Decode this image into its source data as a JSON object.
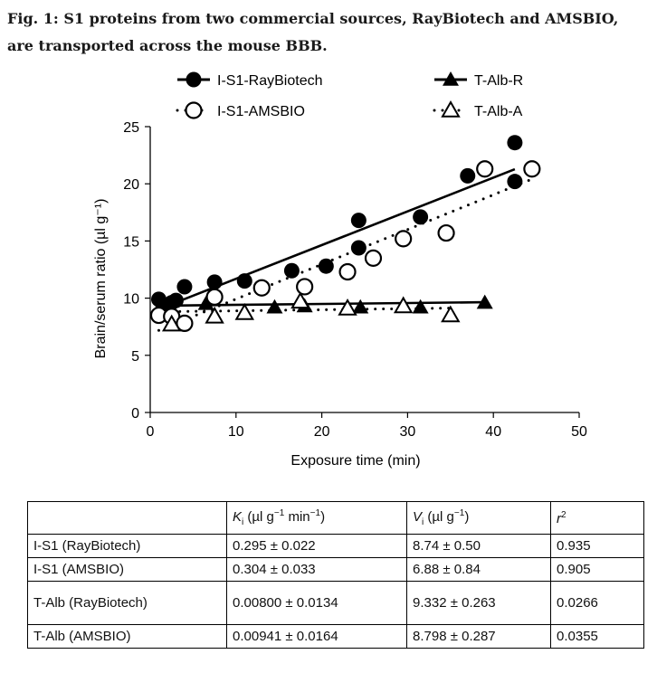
{
  "figure_title": "Fig. 1: S1 proteins from two commercial sources, RayBiotech and AMSBIO, are transported across the mouse BBB.",
  "chart_data": {
    "type": "scatter",
    "xlabel": "Exposure time (min)",
    "ylabel": "Brain/serum ratio (µl g⁻¹)",
    "xlim": [
      0,
      50
    ],
    "ylim": [
      0,
      25
    ],
    "x_ticks": [
      "0",
      "10",
      "20",
      "30",
      "40",
      "50"
    ],
    "y_ticks": [
      "0",
      "5",
      "10",
      "15",
      "20",
      "25"
    ],
    "grid": false,
    "legend_position": "top",
    "series": [
      {
        "name": "I-S1-RayBiotech",
        "marker": "filled-circle",
        "line": "solid",
        "points": [
          [
            1.0,
            9.9
          ],
          [
            1.5,
            9.2
          ],
          [
            2.5,
            9.6
          ],
          [
            3.0,
            9.8
          ],
          [
            4.0,
            11.0
          ],
          [
            7.5,
            11.4
          ],
          [
            11.0,
            11.5
          ],
          [
            16.5,
            12.4
          ],
          [
            20.5,
            12.8
          ],
          [
            24.3,
            16.8
          ],
          [
            24.3,
            14.4
          ],
          [
            31.5,
            17.1
          ],
          [
            37.0,
            20.7
          ],
          [
            42.5,
            23.6
          ],
          [
            42.5,
            20.2
          ]
        ],
        "fit": {
          "slope": 0.295,
          "intercept": 8.74
        }
      },
      {
        "name": "I-S1-AMSBIO",
        "marker": "open-circle-dot",
        "line": "dotted",
        "points": [
          [
            1.0,
            8.5
          ],
          [
            2.5,
            8.4
          ],
          [
            4.0,
            7.8
          ],
          [
            7.5,
            10.1
          ],
          [
            13.0,
            10.9
          ],
          [
            18.0,
            11.0
          ],
          [
            23.0,
            12.3
          ],
          [
            26.0,
            13.5
          ],
          [
            29.5,
            15.2
          ],
          [
            34.5,
            15.7
          ],
          [
            39.0,
            21.3
          ],
          [
            44.5,
            21.3
          ]
        ],
        "fit": {
          "slope": 0.304,
          "intercept": 6.88
        }
      },
      {
        "name": "T-Alb-R",
        "marker": "filled-triangle",
        "line": "solid",
        "points": [
          [
            1.5,
            8.6
          ],
          [
            6.5,
            9.5
          ],
          [
            18.0,
            9.3
          ],
          [
            14.5,
            9.2
          ],
          [
            24.5,
            9.2
          ],
          [
            31.5,
            9.2
          ],
          [
            39.0,
            9.6
          ]
        ],
        "fit": {
          "slope": 0.008,
          "intercept": 9.332
        }
      },
      {
        "name": "T-Alb-A",
        "marker": "open-triangle",
        "line": "dotted",
        "points": [
          [
            2.5,
            7.7
          ],
          [
            7.5,
            8.4
          ],
          [
            11.0,
            8.7
          ],
          [
            17.5,
            9.7
          ],
          [
            23.0,
            9.1
          ],
          [
            29.5,
            9.3
          ],
          [
            35.0,
            8.5
          ]
        ],
        "fit": {
          "slope": 0.00941,
          "intercept": 8.798
        }
      }
    ]
  },
  "table": {
    "header": {
      "ki_sym": "K",
      "ki_sub": "i",
      "ki_unit_a": " (µl g",
      "ki_sup": "−1",
      "ki_unit_b": " min",
      "ki_sup2": "−1",
      "ki_close": ")",
      "vi_sym": "V",
      "vi_sub": "i",
      "vi_unit_a": " (µl g",
      "vi_sup": "−1",
      "vi_close": ")",
      "r_sym": "r",
      "r_sup": "2"
    },
    "rows": [
      {
        "label": "I-S1 (RayBiotech)",
        "ki": "0.295 ± 0.022",
        "vi": "8.74 ± 0.50",
        "r2": "0.935"
      },
      {
        "label": "I-S1 (AMSBIO)",
        "ki": "0.304 ± 0.033",
        "vi": "6.88 ± 0.84",
        "r2": "0.905"
      },
      {
        "label": "T-Alb (RayBiotech)",
        "ki": "0.00800 ± 0.0134",
        "vi": "9.332 ± 0.263",
        "r2": "0.0266"
      },
      {
        "label": "T-Alb (AMSBIO)",
        "ki": "0.00941 ± 0.0164",
        "vi": "8.798 ± 0.287",
        "r2": "0.0355"
      }
    ]
  }
}
